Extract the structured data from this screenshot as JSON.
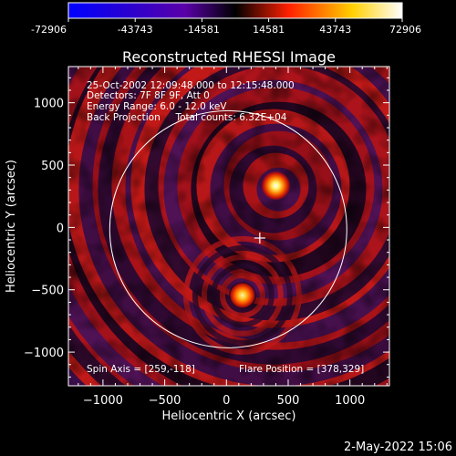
{
  "colorbar": {
    "tick_labels": [
      "-72906",
      "-43743",
      "-14581",
      "14581",
      "43743",
      "72906"
    ],
    "min": -72906,
    "max": 72906,
    "colors": [
      "#0000ff",
      "#5a00a8",
      "#000000",
      "#ff2000",
      "#ffd000",
      "#ffffff"
    ]
  },
  "chart_data": {
    "type": "heatmap",
    "title": "Reconstructed RHESSI Image",
    "xlabel": "Heliocentric X (arcsec)",
    "ylabel": "Heliocentric Y (arcsec)",
    "xlim": [
      -1280,
      1320
    ],
    "ylim": [
      -1270,
      1290
    ],
    "xticks": [
      -1000,
      -500,
      0,
      500,
      1000
    ],
    "xtick_labels": [
      "−1000",
      "−500",
      "0",
      "500",
      "1000"
    ],
    "yticks": [
      -1000,
      -500,
      0,
      500,
      1000
    ],
    "ytick_labels": [
      "−1000",
      "−500",
      "0",
      "500",
      "1000"
    ],
    "info_lines": [
      "25-Oct-2002 12:09:48.000 to 12:15:48.000",
      "Detectors: 7F 8F 9F, Att 0",
      "Energy Range: 6.0 - 12.0 keV",
      "Back Projection     Total counts: 6.32E+04"
    ],
    "spin_axis_label": "Spin Axis = [259,-118]",
    "flare_position_label": "Flare Position = [378,329]",
    "sources": [
      {
        "x": 400,
        "y": 335,
        "peak": 72906
      },
      {
        "x": 130,
        "y": -545,
        "peak": 58000
      }
    ],
    "marker": {
      "x": 270,
      "y": -85
    },
    "solar_disk_radius": 960
  },
  "footer": {
    "timestamp": "2-May-2022 15:06"
  }
}
